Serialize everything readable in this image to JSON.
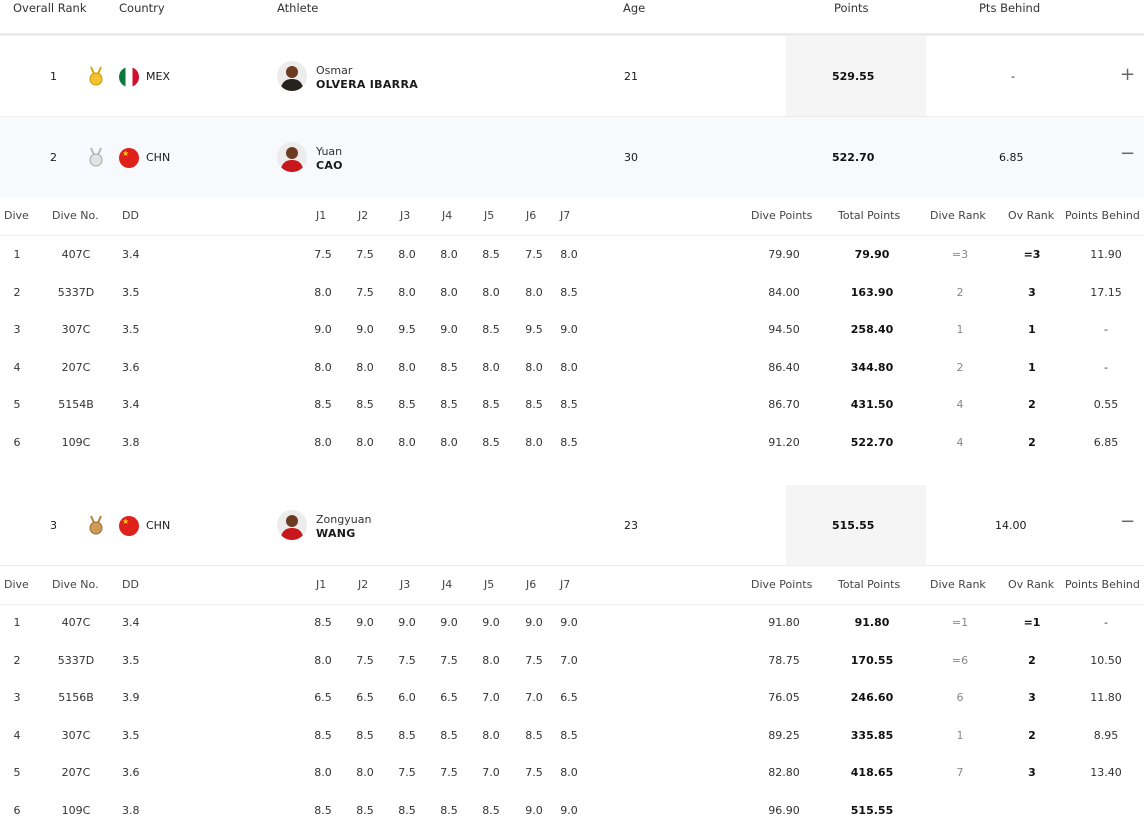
{
  "header": {
    "overall_rank": "Overall Rank",
    "country": "Country",
    "athlete": "Athlete",
    "age": "Age",
    "points": "Points",
    "pts_behind": "Pts Behind"
  },
  "athletes": [
    {
      "rank": "1",
      "medal": "gold-medal-icon",
      "country": "MEX",
      "first_name": "Osmar",
      "last_name": "OLVERA IBARRA",
      "age": "21",
      "points": "529.55",
      "pts_behind": "-",
      "toggle": "+"
    },
    {
      "rank": "2",
      "medal": "silver-medal-icon",
      "country": "CHN",
      "first_name": "Yuan",
      "last_name": "CAO",
      "age": "30",
      "points": "522.70",
      "pts_behind": "6.85",
      "toggle": "−"
    },
    {
      "rank": "3",
      "medal": "bronze-medal-icon",
      "country": "CHN",
      "first_name": "Zongyuan",
      "last_name": "WANG",
      "age": "23",
      "points": "515.55",
      "pts_behind": "14.00",
      "toggle": "−"
    }
  ],
  "dive_header": {
    "dive": "Dive",
    "dive_no": "Dive No.",
    "dd": "DD",
    "j1": "J1",
    "j2": "J2",
    "j3": "J3",
    "j4": "J4",
    "j5": "J5",
    "j6": "J6",
    "j7": "J7",
    "dive_points": "Dive Points",
    "total_points": "Total Points",
    "dive_rank": "Dive Rank",
    "ov_rank": "Ov Rank",
    "points_behind": "Points Behind"
  },
  "dives_cao": [
    {
      "dive": "1",
      "no": "407C",
      "dd": "3.4",
      "j": [
        "7.5",
        "7.5",
        "8.0",
        "8.0",
        "8.5",
        "7.5",
        "8.0"
      ],
      "dp": "79.90",
      "tp": "79.90",
      "dr": "=3",
      "ov": "=3",
      "pb": "11.90"
    },
    {
      "dive": "2",
      "no": "5337D",
      "dd": "3.5",
      "j": [
        "8.0",
        "7.5",
        "8.0",
        "8.0",
        "8.0",
        "8.0",
        "8.5"
      ],
      "dp": "84.00",
      "tp": "163.90",
      "dr": "2",
      "ov": "3",
      "pb": "17.15"
    },
    {
      "dive": "3",
      "no": "307C",
      "dd": "3.5",
      "j": [
        "9.0",
        "9.0",
        "9.5",
        "9.0",
        "8.5",
        "9.5",
        "9.0"
      ],
      "dp": "94.50",
      "tp": "258.40",
      "dr": "1",
      "ov": "1",
      "pb": "-"
    },
    {
      "dive": "4",
      "no": "207C",
      "dd": "3.6",
      "j": [
        "8.0",
        "8.0",
        "8.0",
        "8.5",
        "8.0",
        "8.0",
        "8.0"
      ],
      "dp": "86.40",
      "tp": "344.80",
      "dr": "2",
      "ov": "1",
      "pb": "-"
    },
    {
      "dive": "5",
      "no": "5154B",
      "dd": "3.4",
      "j": [
        "8.5",
        "8.5",
        "8.5",
        "8.5",
        "8.5",
        "8.5",
        "8.5"
      ],
      "dp": "86.70",
      "tp": "431.50",
      "dr": "4",
      "ov": "2",
      "pb": "0.55"
    },
    {
      "dive": "6",
      "no": "109C",
      "dd": "3.8",
      "j": [
        "8.0",
        "8.0",
        "8.0",
        "8.0",
        "8.5",
        "8.0",
        "8.5"
      ],
      "dp": "91.20",
      "tp": "522.70",
      "dr": "4",
      "ov": "2",
      "pb": "6.85"
    }
  ],
  "dives_wang": [
    {
      "dive": "1",
      "no": "407C",
      "dd": "3.4",
      "j": [
        "8.5",
        "9.0",
        "9.0",
        "9.0",
        "9.0",
        "9.0",
        "9.0"
      ],
      "dp": "91.80",
      "tp": "91.80",
      "dr": "=1",
      "ov": "=1",
      "pb": "-"
    },
    {
      "dive": "2",
      "no": "5337D",
      "dd": "3.5",
      "j": [
        "8.0",
        "7.5",
        "7.5",
        "7.5",
        "8.0",
        "7.5",
        "7.0"
      ],
      "dp": "78.75",
      "tp": "170.55",
      "dr": "=6",
      "ov": "2",
      "pb": "10.50"
    },
    {
      "dive": "3",
      "no": "5156B",
      "dd": "3.9",
      "j": [
        "6.5",
        "6.5",
        "6.0",
        "6.5",
        "7.0",
        "7.0",
        "6.5"
      ],
      "dp": "76.05",
      "tp": "246.60",
      "dr": "6",
      "ov": "3",
      "pb": "11.80"
    },
    {
      "dive": "4",
      "no": "307C",
      "dd": "3.5",
      "j": [
        "8.5",
        "8.5",
        "8.5",
        "8.5",
        "8.0",
        "8.5",
        "8.5"
      ],
      "dp": "89.25",
      "tp": "335.85",
      "dr": "1",
      "ov": "2",
      "pb": "8.95"
    },
    {
      "dive": "5",
      "no": "207C",
      "dd": "3.6",
      "j": [
        "8.0",
        "8.0",
        "7.5",
        "7.5",
        "7.0",
        "7.5",
        "8.0"
      ],
      "dp": "82.80",
      "tp": "418.65",
      "dr": "7",
      "ov": "3",
      "pb": "13.40"
    },
    {
      "dive": "6",
      "no": "109C",
      "dd": "3.8",
      "j": [
        "8.5",
        "8.5",
        "8.5",
        "8.5",
        "8.5",
        "9.0",
        "9.0"
      ],
      "dp": "96.90",
      "tp": "515.55",
      "dr": "",
      "ov": "",
      "pb": ""
    }
  ]
}
